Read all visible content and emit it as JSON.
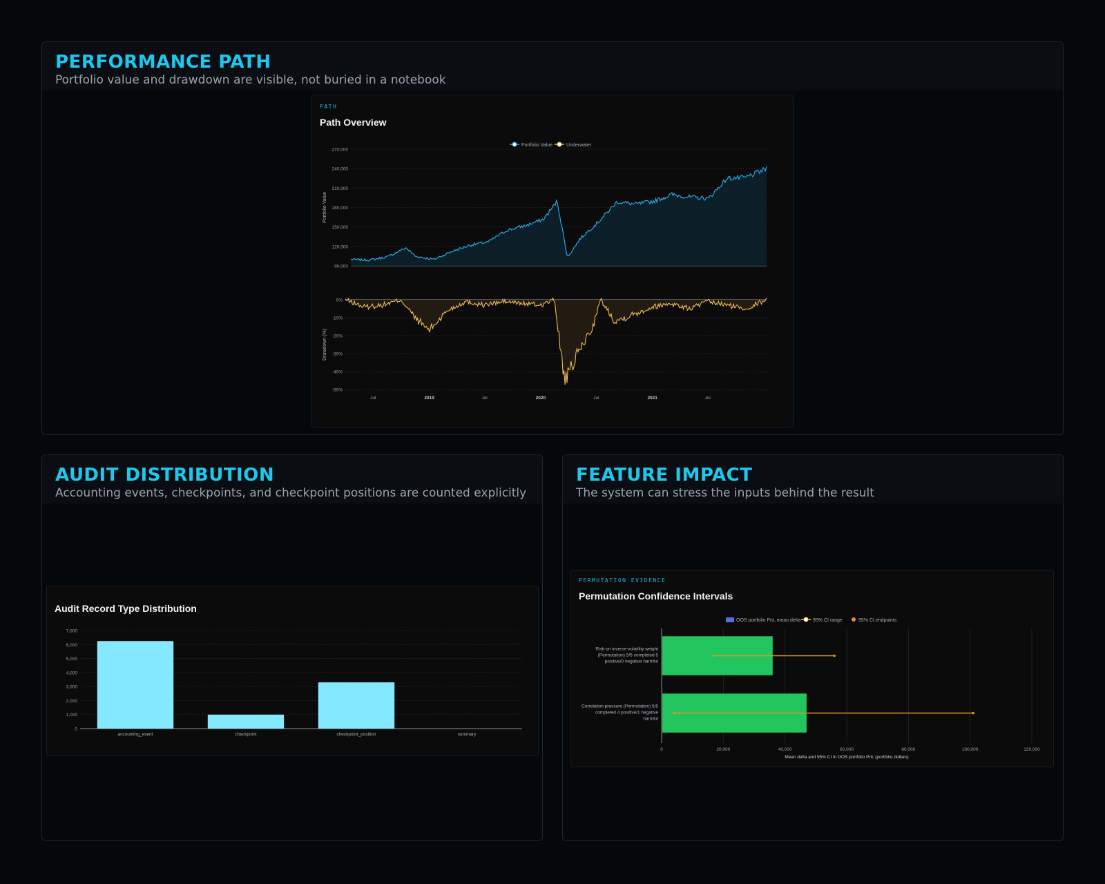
{
  "panels": {
    "performance": {
      "title": "PERFORMANCE PATH",
      "subtitle": "Portfolio value and drawdown are visible, not buried in a notebook",
      "card_kicker": "PATH",
      "card_title": "Path Overview"
    },
    "audit": {
      "title": "AUDIT DISTRIBUTION",
      "subtitle": "Accounting events, checkpoints, and checkpoint positions are counted explicitly",
      "card_title": "Audit Record Type Distribution"
    },
    "feature": {
      "title": "FEATURE IMPACT",
      "subtitle": "The system can stress the inputs behind the result",
      "card_kicker": "PERMUTATION EVIDENCE",
      "card_title": "Permutation Confidence Intervals"
    }
  },
  "colors": {
    "accent": "#1cc8ee",
    "portfolio": "#29a9e0",
    "underwater": "#f2bd55",
    "audit_bar": "#84e8ff",
    "perm_bar": "#22c55e",
    "ci": "#e0952b"
  },
  "chart_data": [
    {
      "id": "portfolio",
      "type": "area",
      "title": "Path Overview",
      "ylabel": "Portfolio Value",
      "ylim": [
        90000,
        270000
      ],
      "yticks": [
        "270,000",
        "240,000",
        "210,000",
        "180,000",
        "150,000",
        "120,000",
        "90,000"
      ],
      "legend": [
        "Portfolio Value",
        "Underwater"
      ],
      "x": [
        "2018-04-01",
        "2018-06-01",
        "2018-08-01",
        "2018-10-01",
        "2018-11-01",
        "2019-01-01",
        "2019-03-01",
        "2019-05-01",
        "2019-07-01",
        "2019-09-01",
        "2019-11-01",
        "2020-01-01",
        "2020-02-15",
        "2020-03-20",
        "2020-05-01",
        "2020-07-01",
        "2020-09-01",
        "2020-11-01",
        "2021-01-01",
        "2021-03-01",
        "2021-05-01",
        "2021-07-01",
        "2021-09-01",
        "2021-11-01",
        "2022-01-10"
      ],
      "values": [
        100000,
        99000,
        104000,
        118000,
        105000,
        100000,
        112000,
        122000,
        127000,
        145000,
        152000,
        162000,
        190000,
        103000,
        132000,
        158000,
        189000,
        185000,
        190000,
        200000,
        196000,
        194000,
        225000,
        226000,
        240000
      ]
    },
    {
      "id": "drawdown",
      "type": "area",
      "ylabel": "Drawdown (%)",
      "ylim": [
        -50,
        0
      ],
      "yticks": [
        "0%",
        "-10%",
        "-20%",
        "-30%",
        "-40%",
        "-50%"
      ],
      "xticks": [
        "Jul",
        "2019",
        "Jul",
        "2020",
        "Jul",
        "2021",
        "Jul"
      ],
      "x": [
        "2018-04-01",
        "2018-06-01",
        "2018-08-01",
        "2018-10-01",
        "2018-11-15",
        "2019-01-01",
        "2019-03-01",
        "2019-05-01",
        "2019-07-01",
        "2019-09-01",
        "2019-11-01",
        "2020-01-01",
        "2020-02-15",
        "2020-03-20",
        "2020-05-01",
        "2020-06-20",
        "2020-07-15",
        "2020-09-01",
        "2020-11-01",
        "2021-01-01",
        "2021-03-01",
        "2021-05-01",
        "2021-07-01",
        "2021-09-01",
        "2021-11-01",
        "2022-01-10"
      ],
      "values": [
        0,
        -4,
        -3,
        0,
        -10,
        -17,
        -6,
        -1,
        -3,
        -1,
        -2,
        -3,
        0,
        -46,
        -30,
        -15,
        0,
        -12,
        -8,
        -4,
        -2,
        -5,
        -1,
        -3,
        -5,
        0
      ]
    },
    {
      "id": "audit",
      "type": "bar",
      "title": "Audit Record Type Distribution",
      "categories": [
        "accounting_event",
        "checkpoint",
        "checkpoint_position",
        "summary"
      ],
      "values": [
        6250,
        1000,
        3300,
        0
      ],
      "ylim": [
        0,
        7000
      ],
      "yticks": [
        "7,000",
        "6,000",
        "5,000",
        "4,000",
        "3,000",
        "2,000",
        "1,000",
        "0"
      ]
    },
    {
      "id": "permutation",
      "type": "bar",
      "title": "Permutation Confidence Intervals",
      "xlabel": "Mean delta and 95% CI in OOS portfolio PnL (portfolio dollars)",
      "xlim": [
        0,
        120000
      ],
      "xticks": [
        "0",
        "20,000",
        "40,000",
        "60,000",
        "80,000",
        "100,000",
        "120,000"
      ],
      "legend": [
        "OOS portfolio PnL mean delta",
        "95% CI range",
        "95% CI endpoints"
      ],
      "categories": [
        [
          "Risk-on inverse-volatility weight",
          "(Permutation) 5/5 completed 5",
          "positive/0 negative harmful"
        ],
        [
          "Correlation pressure (Permutation) 5/5",
          "completed 4 positive/1 negative",
          "harmful"
        ]
      ],
      "values": [
        36000,
        47000
      ],
      "ci_low": [
        17000,
        4000
      ],
      "ci_high": [
        56000,
        101000
      ]
    }
  ]
}
